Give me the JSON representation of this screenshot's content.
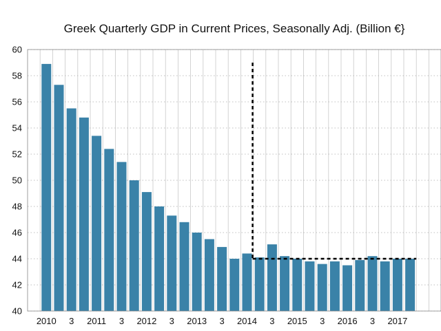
{
  "chart_data": {
    "type": "bar",
    "title": "Greek Quarterly GDP in Current Prices, Seasonally Adj. (Billion €}",
    "xlabel": "",
    "ylabel": "",
    "ylim": [
      40,
      60
    ],
    "y_ticks": [
      40,
      42,
      44,
      46,
      48,
      50,
      52,
      54,
      56,
      58,
      60
    ],
    "x_tick_labels": [
      "2010",
      "3",
      "2011",
      "3",
      "2012",
      "3",
      "2013",
      "3",
      "2014",
      "3",
      "2015",
      "3",
      "2016",
      "3",
      "2017"
    ],
    "categories": [
      "2010 Q1",
      "2010 Q2",
      "2010 Q3",
      "2010 Q4",
      "2011 Q1",
      "2011 Q2",
      "2011 Q3",
      "2011 Q4",
      "2012 Q1",
      "2012 Q2",
      "2012 Q3",
      "2012 Q4",
      "2013 Q1",
      "2013 Q2",
      "2013 Q3",
      "2013 Q4",
      "2014 Q1",
      "2014 Q2",
      "2014 Q3",
      "2014 Q4",
      "2015 Q1",
      "2015 Q2",
      "2015 Q3",
      "2015 Q4",
      "2016 Q1",
      "2016 Q2",
      "2016 Q3",
      "2016 Q4",
      "2017 Q1",
      "2017 Q2"
    ],
    "values": [
      58.9,
      57.3,
      55.5,
      54.8,
      53.4,
      52.4,
      51.4,
      50.0,
      49.1,
      48.0,
      47.3,
      46.8,
      46.0,
      45.5,
      44.9,
      44.0,
      44.4,
      44.1,
      45.1,
      44.2,
      44.0,
      43.8,
      43.6,
      43.8,
      43.5,
      43.9,
      44.2,
      43.8,
      44.0,
      44.0
    ],
    "reference_line": {
      "value": 44.0,
      "from_category": "2014 Q2",
      "style": "dashed"
    },
    "vertical_marker": {
      "at_category": "2014 Q2",
      "from": 44.0,
      "to": 59.0,
      "style": "dashed"
    },
    "grid": true,
    "colors": {
      "bar": "#3a82a8",
      "grid": "#aaaaaa",
      "dashed": "#000000"
    }
  }
}
